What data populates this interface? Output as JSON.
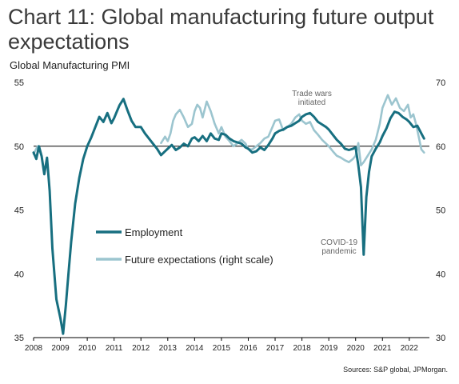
{
  "title": "Chart 11: Global manufacturing future output expectations",
  "subtitle": "Global Manufacturing PMI",
  "source": "Sources: S&P global, JPMorgan.",
  "colors": {
    "employment": "#176f80",
    "future": "#9cc5cf",
    "baseline": "#000000"
  },
  "chart_data": {
    "type": "line",
    "title": "Chart 11: Global manufacturing future output expectations",
    "ylabel": "Global Manufacturing PMI",
    "ylim_left": [
      35,
      55
    ],
    "ylim_right": [
      30,
      70
    ],
    "xlim": [
      2008,
      2022.75
    ],
    "left_ticks": [
      "55",
      "50",
      "45",
      "40",
      "35"
    ],
    "right_ticks": [
      "70",
      "60",
      "50",
      "40",
      "30"
    ],
    "x_ticks": [
      "2008",
      "2009",
      "2010",
      "2011",
      "2012",
      "2013",
      "2014",
      "2015",
      "2016",
      "2017",
      "2018",
      "2019",
      "2020",
      "2021",
      "2022"
    ],
    "grid": false,
    "legend_placement": "center-left",
    "annotations": [
      {
        "label": [
          "Trade wars",
          "initiated"
        ],
        "x": 2018.3,
        "y": 52.0
      },
      {
        "label": [
          "COVID-19",
          "pandemic"
        ],
        "x": 2020.3,
        "y": 41.5
      }
    ],
    "series": [
      {
        "name": "Employment",
        "axis": "left",
        "x": [
          2008.0,
          2008.1,
          2008.2,
          2008.3,
          2008.4,
          2008.5,
          2008.6,
          2008.7,
          2008.85,
          2009.0,
          2009.1,
          2009.2,
          2009.3,
          2009.4,
          2009.55,
          2009.7,
          2009.85,
          2010.0,
          2010.15,
          2010.3,
          2010.45,
          2010.6,
          2010.75,
          2010.9,
          2011.0,
          2011.1,
          2011.2,
          2011.35,
          2011.5,
          2011.65,
          2011.8,
          2012.0,
          2012.15,
          2012.3,
          2012.45,
          2012.6,
          2012.75,
          2012.9,
          2013.0,
          2013.15,
          2013.3,
          2013.45,
          2013.6,
          2013.75,
          2013.9,
          2014.0,
          2014.15,
          2014.3,
          2014.45,
          2014.6,
          2014.75,
          2014.9,
          2015.0,
          2015.15,
          2015.3,
          2015.45,
          2015.6,
          2015.75,
          2015.9,
          2016.0,
          2016.15,
          2016.3,
          2016.45,
          2016.6,
          2016.75,
          2016.9,
          2017.0,
          2017.15,
          2017.3,
          2017.45,
          2017.6,
          2017.75,
          2017.9,
          2018.0,
          2018.15,
          2018.3,
          2018.45,
          2018.6,
          2018.75,
          2018.9,
          2019.0,
          2019.15,
          2019.3,
          2019.45,
          2019.6,
          2019.75,
          2019.9,
          2020.0,
          2020.1,
          2020.2,
          2020.3,
          2020.4,
          2020.5,
          2020.6,
          2020.75,
          2020.9,
          2021.0,
          2021.15,
          2021.3,
          2021.45,
          2021.6,
          2021.75,
          2021.9,
          2022.0,
          2022.15,
          2022.3,
          2022.45,
          2022.55
        ],
        "y": [
          49.5,
          49.0,
          50.0,
          49.2,
          47.8,
          49.1,
          46.5,
          42.0,
          38.0,
          36.5,
          35.3,
          37.5,
          40.0,
          42.5,
          45.5,
          47.5,
          49.0,
          50.0,
          50.7,
          51.5,
          52.3,
          51.9,
          52.6,
          51.8,
          52.2,
          52.7,
          53.2,
          53.7,
          52.8,
          52.0,
          51.5,
          51.5,
          51.0,
          50.6,
          50.2,
          49.8,
          49.3,
          49.6,
          49.8,
          50.1,
          49.7,
          49.9,
          50.2,
          50.0,
          50.6,
          50.7,
          50.4,
          50.8,
          50.4,
          51.0,
          50.6,
          50.5,
          51.0,
          50.9,
          50.6,
          50.4,
          50.3,
          50.2,
          49.9,
          49.8,
          49.5,
          49.6,
          49.9,
          49.7,
          50.1,
          50.6,
          51.0,
          51.2,
          51.3,
          51.5,
          51.6,
          51.8,
          52.0,
          52.3,
          52.5,
          52.6,
          52.3,
          51.9,
          51.7,
          51.5,
          51.3,
          50.9,
          50.5,
          50.2,
          49.8,
          49.7,
          49.8,
          49.9,
          48.5,
          46.8,
          41.5,
          46.0,
          48.0,
          49.2,
          49.8,
          50.3,
          50.8,
          51.4,
          52.2,
          52.7,
          52.6,
          52.3,
          52.1,
          51.9,
          51.5,
          51.6,
          51.0,
          50.6
        ]
      },
      {
        "name": "Future expectations (right scale)",
        "axis": "right",
        "x": [
          2008.0,
          2008.15,
          2008.3,
          2012.75,
          2012.9,
          2013.0,
          2013.1,
          2013.2,
          2013.3,
          2013.45,
          2013.6,
          2013.75,
          2013.9,
          2014.0,
          2014.1,
          2014.2,
          2014.3,
          2014.45,
          2014.6,
          2014.75,
          2014.9,
          2015.0,
          2015.15,
          2015.3,
          2015.45,
          2015.6,
          2015.75,
          2015.9,
          2016.0,
          2016.15,
          2016.3,
          2016.45,
          2016.6,
          2016.75,
          2016.9,
          2017.0,
          2017.15,
          2017.3,
          2017.45,
          2017.6,
          2017.75,
          2017.9,
          2018.0,
          2018.15,
          2018.3,
          2018.45,
          2018.6,
          2018.75,
          2018.9,
          2019.0,
          2019.15,
          2019.3,
          2019.45,
          2019.6,
          2019.75,
          2019.9,
          2020.0,
          2020.1,
          2020.2,
          2020.3,
          2020.45,
          2020.6,
          2020.75,
          2020.9,
          2021.0,
          2021.1,
          2021.2,
          2021.35,
          2021.5,
          2021.65,
          2021.8,
          2021.95,
          2022.05,
          2022.15,
          2022.25,
          2022.35,
          2022.45,
          2022.55
        ],
        "y": [
          58.8,
          60.0,
          58.5,
          60.5,
          61.5,
          60.8,
          62.0,
          64.0,
          65.0,
          65.7,
          64.5,
          63.0,
          63.5,
          65.5,
          66.5,
          66.0,
          64.5,
          67.0,
          65.5,
          63.5,
          62.0,
          63.0,
          61.5,
          60.8,
          60.0,
          60.5,
          61.0,
          60.4,
          59.5,
          59.5,
          60.0,
          60.5,
          61.2,
          61.5,
          63.0,
          64.0,
          64.2,
          62.5,
          63.0,
          63.5,
          64.5,
          65.0,
          64.0,
          63.5,
          63.8,
          62.5,
          61.8,
          61.0,
          60.4,
          60.0,
          59.2,
          58.5,
          58.2,
          57.8,
          57.5,
          58.0,
          58.5,
          60.5,
          57.0,
          57.5,
          58.5,
          59.5,
          61.0,
          63.5,
          66.0,
          67.0,
          68.0,
          66.5,
          67.5,
          66.0,
          65.5,
          66.5,
          64.5,
          65.0,
          63.5,
          61.5,
          59.5,
          59.0
        ]
      }
    ]
  }
}
